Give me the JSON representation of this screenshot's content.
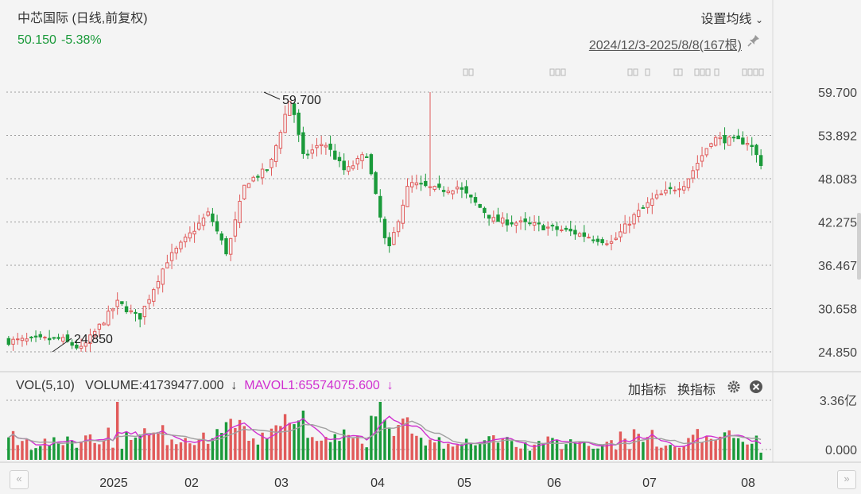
{
  "header": {
    "title": "中芯国际 (日线,前复权)",
    "last_price": "50.150",
    "change_pct": "-5.38%",
    "ma_setting_label": "设置均线",
    "date_range": "2024/12/3-2025/8/8(167根)"
  },
  "volume_panel": {
    "label": "VOL(5,10)",
    "volume_text": "VOLUME:41739477.000",
    "volume_arrow": "↓",
    "mavol_text": "MAVOL1:65574075.600",
    "mavol_arrow": "↓",
    "add_indicator_label": "加指标",
    "switch_indicator_label": "换指标"
  },
  "colors": {
    "up": "#e15a5a",
    "down": "#1a9a3a",
    "ma1": "#d02fd0",
    "ma2": "#a0a0a0",
    "grid": "#9e9e9e"
  },
  "chart_data": [
    {
      "type": "candlestick",
      "title": "中芯国际 (日线,前复权)",
      "y_ticks": [
        "59.700",
        "53.892",
        "48.083",
        "42.275",
        "36.467",
        "30.658",
        "24.850"
      ],
      "ylim": [
        24.85,
        59.7
      ],
      "x_ticks": [
        "2025",
        "02",
        "03",
        "04",
        "05",
        "06",
        "07",
        "08"
      ],
      "annotations": [
        {
          "text": "59.700",
          "value": 59.7,
          "kind": "high"
        },
        {
          "text": "24.850",
          "value": 24.85,
          "kind": "low"
        }
      ],
      "bar_count": 167,
      "approx_close_path": [
        {
          "date": "2024-12-03",
          "close": 26.3
        },
        {
          "date": "2024-12-20",
          "close": 26.6
        },
        {
          "date": "2024-12-27",
          "close": 25.2
        },
        {
          "date": "2025-01-08",
          "close": 31.5
        },
        {
          "date": "2025-01-15",
          "close": 29.3
        },
        {
          "date": "2025-01-24",
          "close": 37.0
        },
        {
          "date": "2025-02-07",
          "close": 43.5
        },
        {
          "date": "2025-02-13",
          "close": 38.0
        },
        {
          "date": "2025-02-19",
          "close": 47.5
        },
        {
          "date": "2025-02-27",
          "close": 49.5
        },
        {
          "date": "2025-03-04",
          "close": 56.5
        },
        {
          "date": "2025-03-06",
          "close": 59.0
        },
        {
          "date": "2025-03-10",
          "close": 51.0
        },
        {
          "date": "2025-03-17",
          "close": 53.0
        },
        {
          "date": "2025-03-24",
          "close": 49.0
        },
        {
          "date": "2025-03-31",
          "close": 51.5
        },
        {
          "date": "2025-04-07",
          "close": 38.0
        },
        {
          "date": "2025-04-14",
          "close": 47.5
        },
        {
          "date": "2025-04-24",
          "close": 46.5
        },
        {
          "date": "2025-04-30",
          "close": 47.0
        },
        {
          "date": "2025-05-12",
          "close": 42.5
        },
        {
          "date": "2025-05-23",
          "close": 42.0
        },
        {
          "date": "2025-06-06",
          "close": 41.0
        },
        {
          "date": "2025-06-20",
          "close": 39.5
        },
        {
          "date": "2025-06-27",
          "close": 43.0
        },
        {
          "date": "2025-07-04",
          "close": 45.5
        },
        {
          "date": "2025-07-14",
          "close": 47.5
        },
        {
          "date": "2025-07-23",
          "close": 53.5
        },
        {
          "date": "2025-08-04",
          "close": 53.0
        },
        {
          "date": "2025-08-08",
          "close": 50.15
        }
      ]
    },
    {
      "type": "bar",
      "title": "VOL(5,10)",
      "y_ticks": [
        "3.36亿",
        "0.000"
      ],
      "ylim": [
        0,
        336000000
      ],
      "series": [
        {
          "name": "VOLUME",
          "last": 41739477.0
        },
        {
          "name": "MAVOL1",
          "last": 65574075.6
        }
      ]
    }
  ]
}
